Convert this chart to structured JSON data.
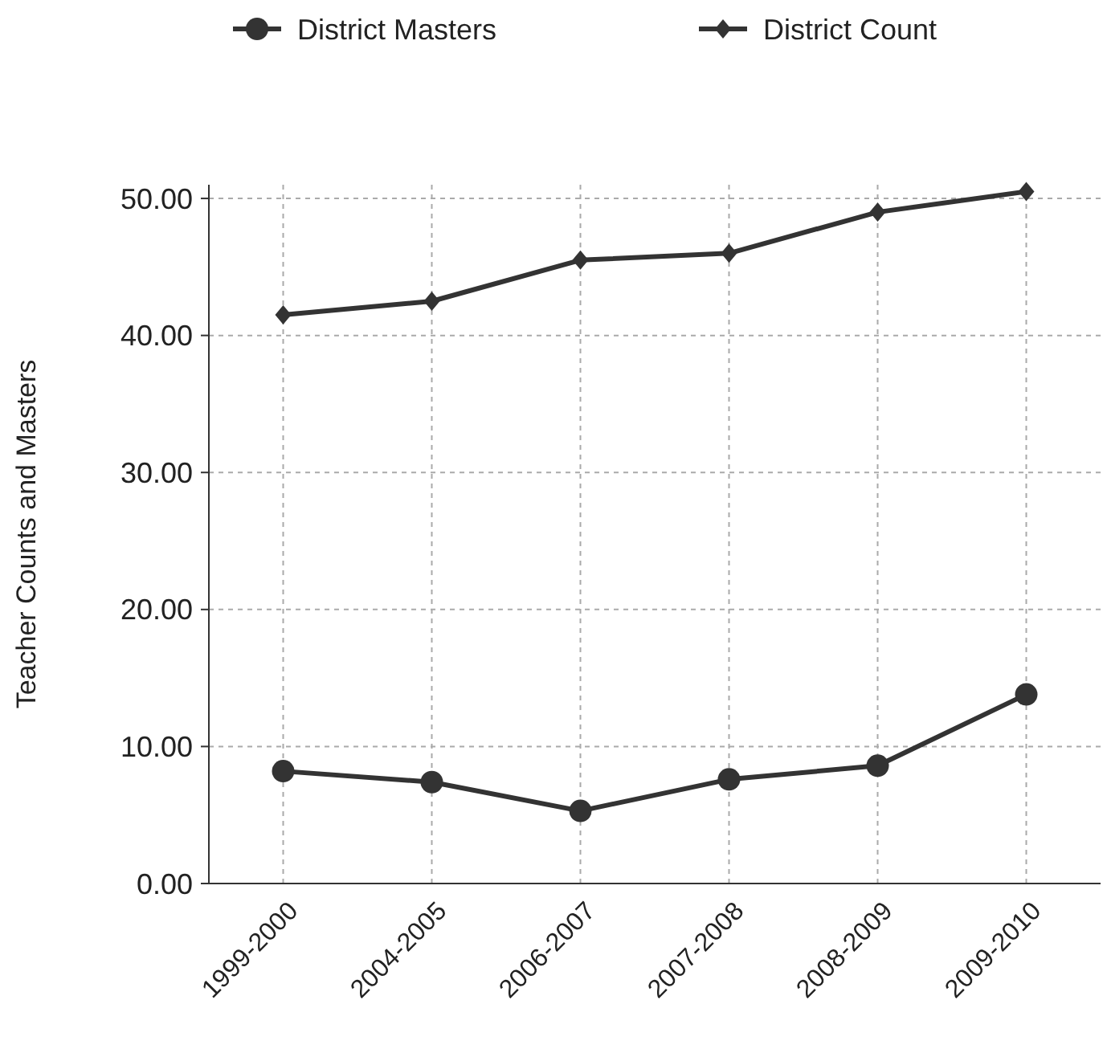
{
  "chart_data": {
    "type": "line",
    "ylabel": "Teacher Counts and Masters",
    "categories": [
      "1999-2000",
      "2004-2005",
      "2006-2007",
      "2007-2008",
      "2008-2009",
      "2009-2010"
    ],
    "series": [
      {
        "name": "District Masters",
        "color": "#333333",
        "marker": "circle",
        "values": [
          8.2,
          7.4,
          5.3,
          7.6,
          8.6,
          13.8
        ]
      },
      {
        "name": "District Count",
        "color": "#333333",
        "marker": "diamond",
        "values": [
          41.5,
          42.5,
          45.5,
          46,
          49,
          50.5
        ]
      }
    ],
    "ylim": [
      0,
      51
    ],
    "yticks": [
      {
        "value": 0,
        "label": "0.00"
      },
      {
        "value": 10,
        "label": "10.00"
      },
      {
        "value": 20,
        "label": "20.00"
      },
      {
        "value": 30,
        "label": "30.00"
      },
      {
        "value": 40,
        "label": "40.00"
      },
      {
        "value": 50,
        "label": "50.00"
      }
    ],
    "grid": true,
    "legend": "top",
    "line_style": "solid"
  }
}
